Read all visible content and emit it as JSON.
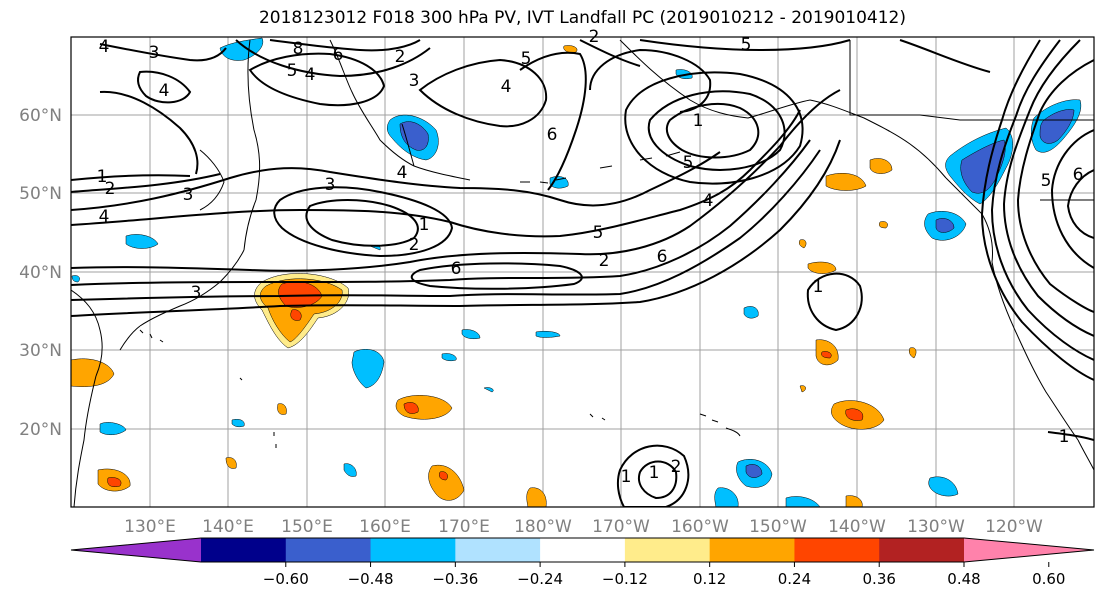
{
  "title": "2018123012 F018 300 hPa PV, IVT Landfall PC (2019010212 - 2019010412)",
  "map": {
    "latitude_labels": [
      "20°N",
      "30°N",
      "40°N",
      "50°N",
      "60°N"
    ],
    "longitude_labels": [
      "130°E",
      "140°E",
      "150°E",
      "160°E",
      "170°E",
      "180°W",
      "170°W",
      "160°W",
      "150°W",
      "140°W",
      "130°W",
      "120°W"
    ],
    "contour_labels": [
      "4",
      "3",
      "8",
      "6",
      "5",
      "4",
      "2",
      "3",
      "4",
      "5",
      "6",
      "2",
      "5",
      "4",
      "1",
      "1",
      "2",
      "3",
      "4",
      "3",
      "1",
      "2",
      "6",
      "5",
      "2",
      "6",
      "3",
      "1",
      "5",
      "1",
      "1",
      "2",
      "1",
      "4",
      "6",
      "5",
      "4"
    ],
    "tick_color": "#808080"
  },
  "colorbar": {
    "colors": [
      "#9932CC",
      "#00008B",
      "#3A5FCD",
      "#00BFFF",
      "#B0E2FF",
      "#FFFFFF",
      "#FFEC8B",
      "#FFA500",
      "#FF4500",
      "#B22222",
      "#FF82AB"
    ],
    "tick_labels": [
      "−0.60",
      "−0.48",
      "−0.36",
      "−0.24",
      "−0.12",
      "0.12",
      "0.24",
      "0.36",
      "0.48",
      "0.60"
    ]
  }
}
